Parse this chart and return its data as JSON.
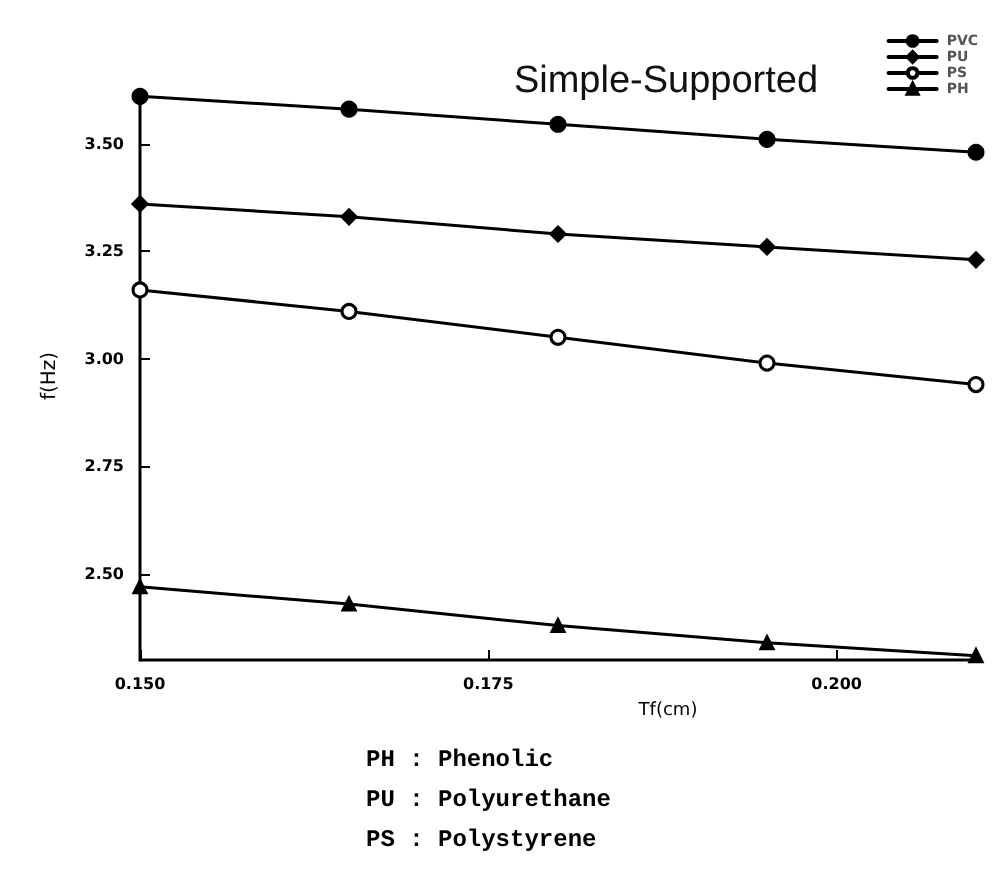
{
  "chart_data": {
    "type": "line",
    "title": "Simple-Supported",
    "xlabel": "Tf(cm)",
    "ylabel": "f(Hz)",
    "x": [
      0.15,
      0.165,
      0.18,
      0.195,
      0.21
    ],
    "series": [
      {
        "name": "PVC",
        "color": "#000000",
        "marker": "circle",
        "values": [
          3.61,
          3.58,
          3.545,
          3.51,
          3.48
        ]
      },
      {
        "name": "PU",
        "color": "#000000",
        "marker": "diamond",
        "values": [
          3.36,
          3.33,
          3.29,
          3.26,
          3.23
        ]
      },
      {
        "name": "PS",
        "color": "#000000",
        "marker": "circle",
        "values": [
          3.16,
          3.11,
          3.05,
          2.99,
          2.94
        ]
      },
      {
        "name": "PH",
        "color": "#000000",
        "marker": "triangle",
        "values": [
          2.47,
          2.43,
          2.38,
          2.34,
          2.31
        ]
      }
    ],
    "xlim": [
      0.15,
      0.21
    ],
    "ylim": [
      2.3,
      3.62
    ],
    "xticks": [
      {
        "value": 0.15,
        "label": "0.150"
      },
      {
        "value": 0.175,
        "label": "0.175"
      },
      {
        "value": 0.2,
        "label": "0.200"
      }
    ],
    "yticks": [
      {
        "value": 2.5,
        "label": "2.50"
      },
      {
        "value": 2.75,
        "label": "2.75"
      },
      {
        "value": 3,
        "label": "3.00"
      },
      {
        "value": 3.25,
        "label": "3.25"
      },
      {
        "value": 3.5,
        "label": "3.50"
      }
    ],
    "grid": false,
    "legend": "top right",
    "line_style": "solid",
    "annotations": [
      "PH : Phenolic",
      "PU : Polyurethane",
      "PS : Polystyrene"
    ]
  }
}
